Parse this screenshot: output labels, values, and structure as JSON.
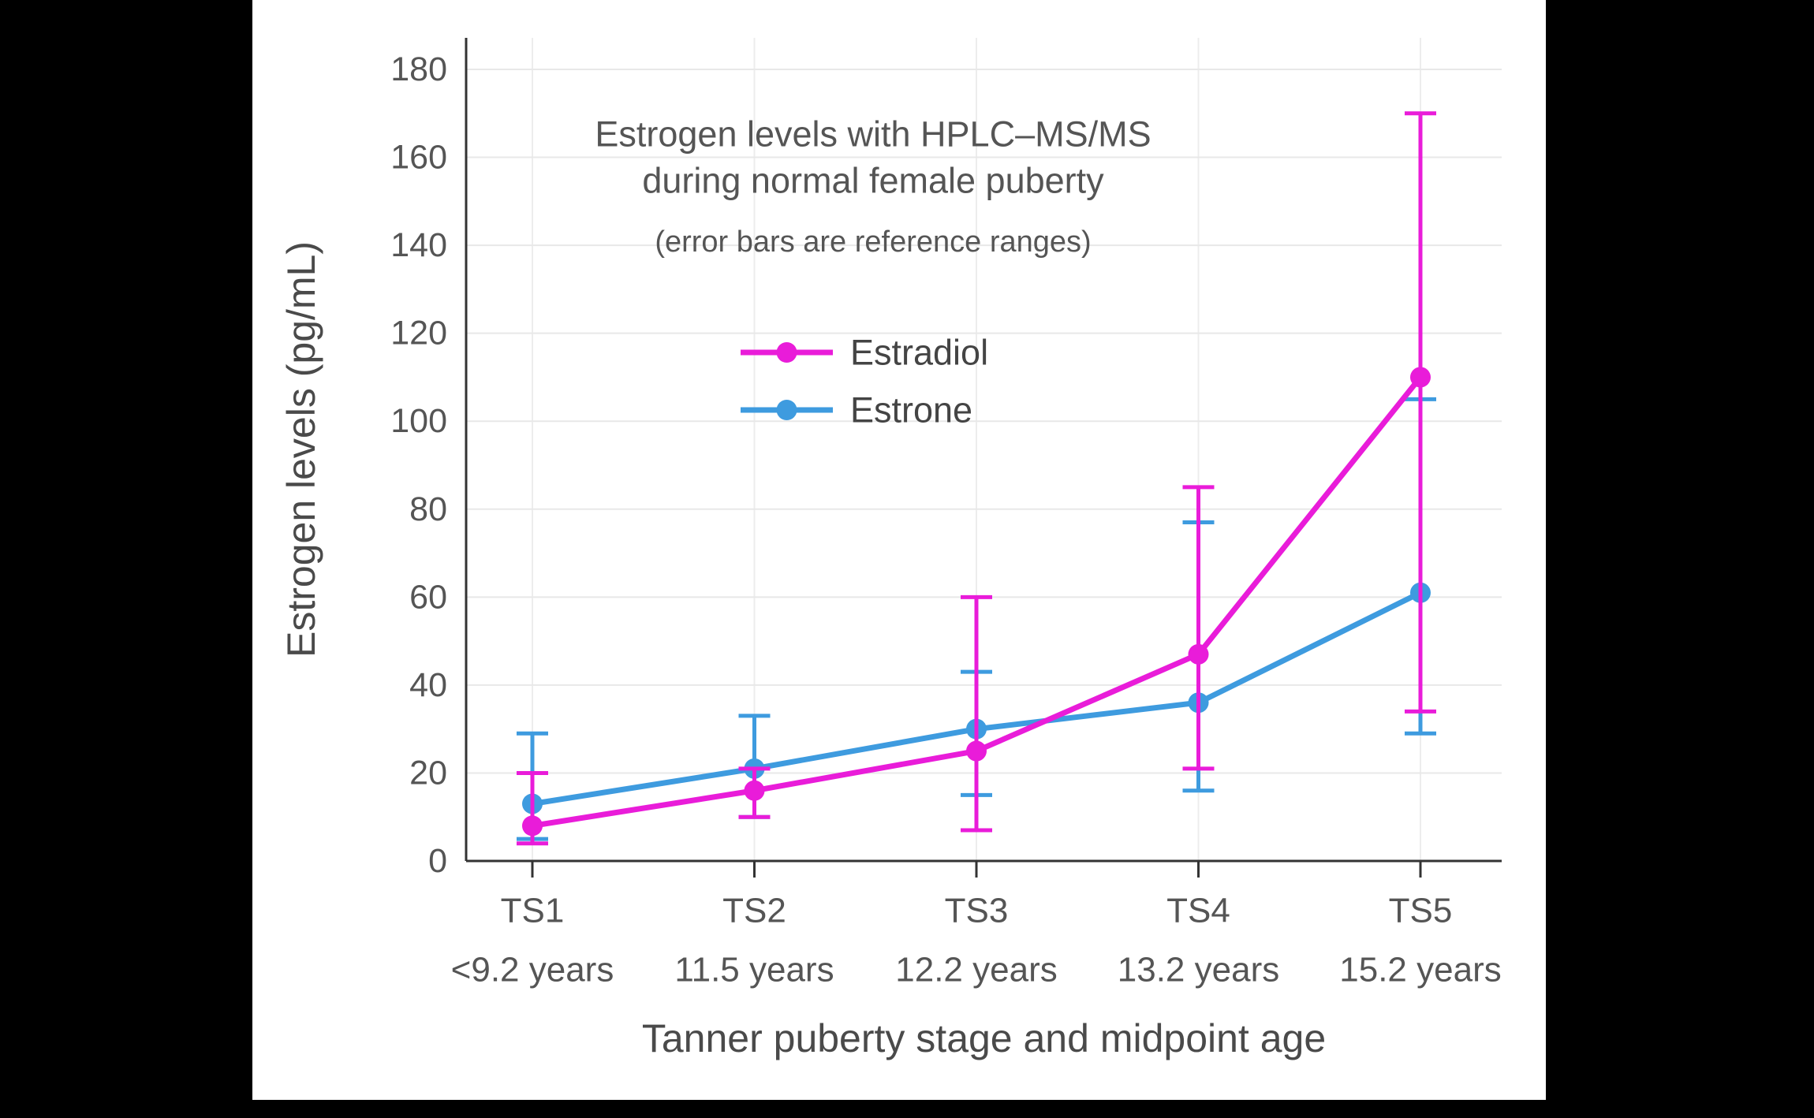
{
  "page": {
    "background_color": "#000000",
    "panel_color": "#ffffff"
  },
  "chart_data": {
    "type": "line",
    "title_line1": "Estrogen levels with HPLC–MS/MS",
    "title_line2": "during normal female puberty",
    "subtitle": "(error bars are reference ranges)",
    "xlabel": "Tanner puberty stage and midpoint age",
    "ylabel": "Estrogen levels (pg/mL)",
    "ylim": [
      0,
      180
    ],
    "yticks": [
      0,
      20,
      40,
      60,
      80,
      100,
      120,
      140,
      160,
      180
    ],
    "grid": true,
    "legend_position": "inside-upper-left",
    "categories": [
      {
        "stage": "TS1",
        "age": "<9.2 years"
      },
      {
        "stage": "TS2",
        "age": "11.5 years"
      },
      {
        "stage": "TS3",
        "age": "12.2 years"
      },
      {
        "stage": "TS4",
        "age": "13.2 years"
      },
      {
        "stage": "TS5",
        "age": "15.2 years"
      }
    ],
    "series": [
      {
        "name": "Estradiol",
        "color": "#e91cd9",
        "values": [
          8,
          16,
          25,
          47,
          110
        ],
        "error_low": [
          4,
          10,
          7,
          21,
          34
        ],
        "error_high": [
          20,
          21,
          60,
          85,
          170
        ]
      },
      {
        "name": "Estrone",
        "color": "#3e9bdf",
        "values": [
          13,
          21,
          30,
          36,
          61
        ],
        "error_low": [
          5,
          10,
          15,
          16,
          29
        ],
        "error_high": [
          29,
          33,
          43,
          77,
          105
        ]
      }
    ]
  }
}
